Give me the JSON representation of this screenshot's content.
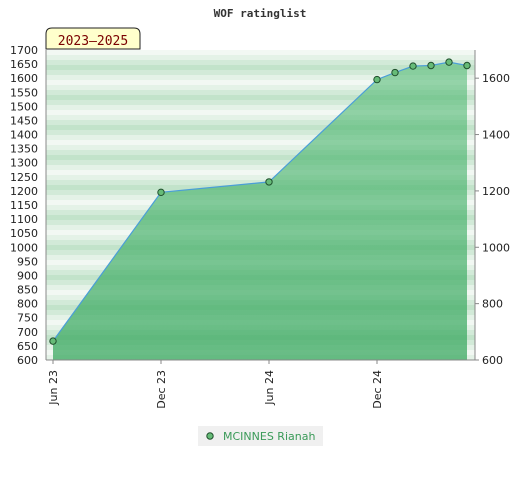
{
  "chart_data": {
    "type": "area",
    "title": "WOF ratinglist",
    "badge": "2023–2025",
    "x_tick_labels": [
      "Jun 23",
      "Dec 23",
      "Jun 24",
      "Dec 24"
    ],
    "left_axis": {
      "ylim": [
        600,
        1700
      ],
      "ticks": [
        600,
        650,
        700,
        750,
        800,
        850,
        900,
        950,
        1000,
        1050,
        1100,
        1150,
        1200,
        1250,
        1300,
        1350,
        1400,
        1450,
        1500,
        1550,
        1600,
        1650,
        1700
      ]
    },
    "right_axis": {
      "ylim": [
        600,
        1700
      ],
      "ticks": [
        600,
        800,
        1000,
        1200,
        1400,
        1600
      ]
    },
    "series": [
      {
        "name": "MCINNES Rianah",
        "color": "#3a9a58",
        "x": [
          "2023-06",
          "2023-12",
          "2024-06",
          "2024-12",
          "2025-01",
          "2025-02",
          "2025-03",
          "2025-04",
          "2025-05"
        ],
        "values": [
          667,
          1195,
          1232,
          1595,
          1620,
          1643,
          1645,
          1657,
          1645
        ]
      }
    ],
    "legend_position": "bottom-center",
    "grid": "horizontal-bands"
  }
}
